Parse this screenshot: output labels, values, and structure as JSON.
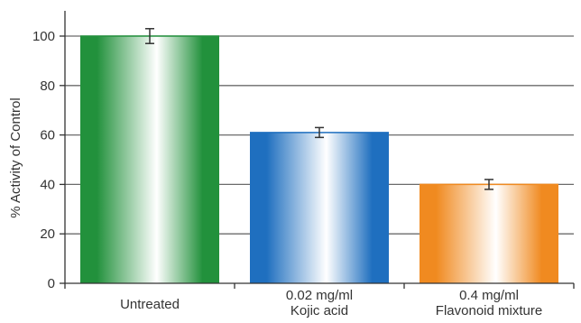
{
  "chart_data": {
    "type": "bar",
    "categories": [
      [
        "Untreated"
      ],
      [
        "0.02 mg/ml",
        "Kojic acid"
      ],
      [
        "0.4 mg/ml",
        "Flavonoid mixture"
      ]
    ],
    "values": [
      100,
      61,
      40
    ],
    "errors": [
      3,
      2,
      2
    ],
    "ylabel": "% Activity of Control",
    "ylim": [
      0,
      100
    ],
    "yticks": [
      0,
      20,
      40,
      60,
      80,
      100
    ],
    "grid": true,
    "colors": [
      "#22913c",
      "#1f6fbf",
      "#f08a20"
    ]
  }
}
